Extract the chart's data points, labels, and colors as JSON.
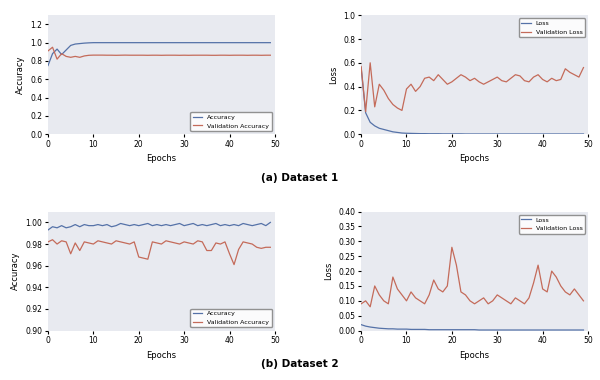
{
  "fig_width": 6.0,
  "fig_height": 3.8,
  "bg_color": "#e8eaf0",
  "line_color_blue": "#5572a8",
  "line_color_red": "#c46b5a",
  "label_acc": "Accuracy",
  "label_val_acc": "Validation Accuracy",
  "label_loss": "Loss",
  "label_val_loss": "Validation Loss",
  "xlabel": "Epochs",
  "ylabel_acc": "Accuracy",
  "ylabel_loss": "Loss",
  "caption_a": "(a) Dataset 1",
  "caption_b": "(b) Dataset 2",
  "acc1": [
    0.75,
    0.88,
    0.93,
    0.87,
    0.92,
    0.97,
    0.985,
    0.99,
    0.995,
    0.998,
    1.0,
    1.0,
    1.0,
    1.0,
    1.0,
    1.0,
    1.0,
    1.0,
    1.0,
    1.0,
    1.0,
    1.0,
    1.0,
    1.0,
    1.0,
    1.0,
    1.0,
    1.0,
    1.0,
    1.0,
    1.0,
    1.0,
    1.0,
    1.0,
    1.0,
    1.0,
    1.0,
    1.0,
    1.0,
    1.0,
    1.0,
    1.0,
    1.0,
    1.0,
    1.0,
    1.0,
    1.0,
    1.0,
    1.0,
    1.0
  ],
  "val_acc1": [
    0.91,
    0.95,
    0.82,
    0.88,
    0.85,
    0.84,
    0.85,
    0.84,
    0.855,
    0.862,
    0.864,
    0.864,
    0.864,
    0.863,
    0.863,
    0.862,
    0.863,
    0.864,
    0.863,
    0.863,
    0.863,
    0.863,
    0.862,
    0.863,
    0.863,
    0.862,
    0.863,
    0.863,
    0.863,
    0.862,
    0.863,
    0.862,
    0.863,
    0.863,
    0.863,
    0.863,
    0.862,
    0.862,
    0.863,
    0.863,
    0.862,
    0.863,
    0.863,
    0.863,
    0.862,
    0.863,
    0.863,
    0.862,
    0.863,
    0.863
  ],
  "loss1": [
    0.56,
    0.18,
    0.1,
    0.07,
    0.05,
    0.04,
    0.03,
    0.02,
    0.015,
    0.01,
    0.008,
    0.007,
    0.006,
    0.005,
    0.005,
    0.004,
    0.004,
    0.004,
    0.003,
    0.003,
    0.003,
    0.003,
    0.003,
    0.002,
    0.002,
    0.002,
    0.002,
    0.002,
    0.002,
    0.002,
    0.002,
    0.002,
    0.002,
    0.002,
    0.002,
    0.002,
    0.002,
    0.002,
    0.002,
    0.002,
    0.002,
    0.002,
    0.002,
    0.002,
    0.002,
    0.002,
    0.002,
    0.002,
    0.002,
    0.002
  ],
  "val_loss1": [
    0.57,
    0.19,
    0.6,
    0.23,
    0.42,
    0.37,
    0.3,
    0.25,
    0.22,
    0.2,
    0.38,
    0.42,
    0.36,
    0.4,
    0.47,
    0.48,
    0.45,
    0.5,
    0.46,
    0.42,
    0.44,
    0.47,
    0.5,
    0.48,
    0.45,
    0.47,
    0.44,
    0.42,
    0.44,
    0.46,
    0.48,
    0.45,
    0.44,
    0.47,
    0.5,
    0.49,
    0.45,
    0.44,
    0.48,
    0.5,
    0.46,
    0.44,
    0.47,
    0.45,
    0.46,
    0.55,
    0.52,
    0.5,
    0.48,
    0.56
  ],
  "acc2": [
    0.993,
    0.996,
    0.995,
    0.997,
    0.995,
    0.996,
    0.998,
    0.996,
    0.998,
    0.997,
    0.997,
    0.998,
    0.997,
    0.998,
    0.996,
    0.997,
    0.999,
    0.998,
    0.997,
    0.998,
    0.997,
    0.998,
    0.999,
    0.997,
    0.998,
    0.997,
    0.998,
    0.997,
    0.998,
    0.999,
    0.997,
    0.998,
    0.999,
    0.997,
    0.998,
    0.997,
    0.998,
    0.999,
    0.997,
    0.998,
    0.997,
    0.998,
    0.997,
    0.999,
    0.998,
    0.997,
    0.998,
    0.999,
    0.997,
    1.0
  ],
  "val_acc2": [
    0.982,
    0.984,
    0.98,
    0.983,
    0.982,
    0.971,
    0.981,
    0.974,
    0.982,
    0.981,
    0.98,
    0.983,
    0.982,
    0.981,
    0.98,
    0.983,
    0.982,
    0.981,
    0.98,
    0.982,
    0.968,
    0.967,
    0.966,
    0.982,
    0.981,
    0.98,
    0.983,
    0.982,
    0.981,
    0.98,
    0.982,
    0.981,
    0.98,
    0.983,
    0.982,
    0.974,
    0.974,
    0.981,
    0.98,
    0.982,
    0.971,
    0.961,
    0.975,
    0.982,
    0.981,
    0.98,
    0.977,
    0.976,
    0.977,
    0.977
  ],
  "loss2": [
    0.02,
    0.015,
    0.012,
    0.01,
    0.008,
    0.007,
    0.006,
    0.006,
    0.005,
    0.005,
    0.005,
    0.004,
    0.004,
    0.004,
    0.004,
    0.003,
    0.003,
    0.003,
    0.003,
    0.003,
    0.003,
    0.003,
    0.003,
    0.003,
    0.003,
    0.003,
    0.002,
    0.002,
    0.002,
    0.002,
    0.002,
    0.002,
    0.002,
    0.002,
    0.002,
    0.002,
    0.002,
    0.002,
    0.002,
    0.002,
    0.002,
    0.002,
    0.002,
    0.002,
    0.002,
    0.002,
    0.002,
    0.002,
    0.002,
    0.002
  ],
  "val_loss2": [
    0.09,
    0.1,
    0.08,
    0.15,
    0.12,
    0.1,
    0.09,
    0.18,
    0.14,
    0.12,
    0.1,
    0.13,
    0.11,
    0.1,
    0.09,
    0.12,
    0.17,
    0.14,
    0.13,
    0.15,
    0.28,
    0.22,
    0.13,
    0.12,
    0.1,
    0.09,
    0.1,
    0.11,
    0.09,
    0.1,
    0.12,
    0.11,
    0.1,
    0.09,
    0.11,
    0.1,
    0.09,
    0.11,
    0.16,
    0.22,
    0.14,
    0.13,
    0.2,
    0.18,
    0.15,
    0.13,
    0.12,
    0.14,
    0.12,
    0.1
  ]
}
